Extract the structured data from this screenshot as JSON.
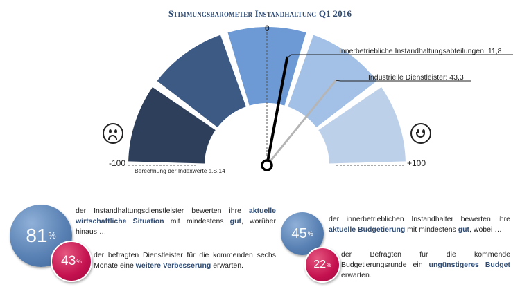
{
  "title": "Stimmungsbarometer Instandhaltung Q1 2016",
  "chart_data": {
    "type": "gauge",
    "range": [
      -100,
      100
    ],
    "tick_labels": [
      "-100",
      "0",
      "+100"
    ],
    "segment_colors": [
      "#2e3f5c",
      "#3d5a85",
      "#6d9ad4",
      "#a3c0e6",
      "#bdd0ea"
    ],
    "needles": [
      {
        "label": "Innerbetriebliche Instandhaltungsabteilungen: 11,8",
        "value": 11.8,
        "color": "#000000"
      },
      {
        "label": "Industrielle Dienstleister: 43,3",
        "value": 43.3,
        "color": "#b5b5b5"
      }
    ],
    "footnote": "Berechnung der Indexwerte s.S.14"
  },
  "faces": {
    "left": "sad-face-icon",
    "right": "happy-face-icon"
  },
  "stats": {
    "dienst_main": {
      "value": "81",
      "unit": "%",
      "text_before": "der Instandhaltungsdienstleister bewerten ihre ",
      "highlight": "aktuelle wirtschaftliche Situation",
      "text_mid": " mit mindestens ",
      "highlight2": "gut",
      "text_after": ", worüber hinaus …"
    },
    "dienst_sub": {
      "value": "43",
      "unit": "%",
      "text_before": "der befragten Dienstleister für die kommenden sechs Monate eine ",
      "highlight": "weitere Verbesserung",
      "text_after": " erwarten."
    },
    "inner_main": {
      "value": "45",
      "unit": "%",
      "text_before": "der innerbetrieblichen Instandhalter bewerten ihre ",
      "highlight": "aktuelle Budgetierung",
      "text_mid": " mit mindestens ",
      "highlight2": "gut",
      "text_after": ", wobei …"
    },
    "inner_sub": {
      "value": "22",
      "unit": "%",
      "text_before": "der Befragten für die kommende Budgetierungsrunde ein ",
      "highlight": "ungünstigeres Budget",
      "text_after": " erwarten."
    }
  }
}
